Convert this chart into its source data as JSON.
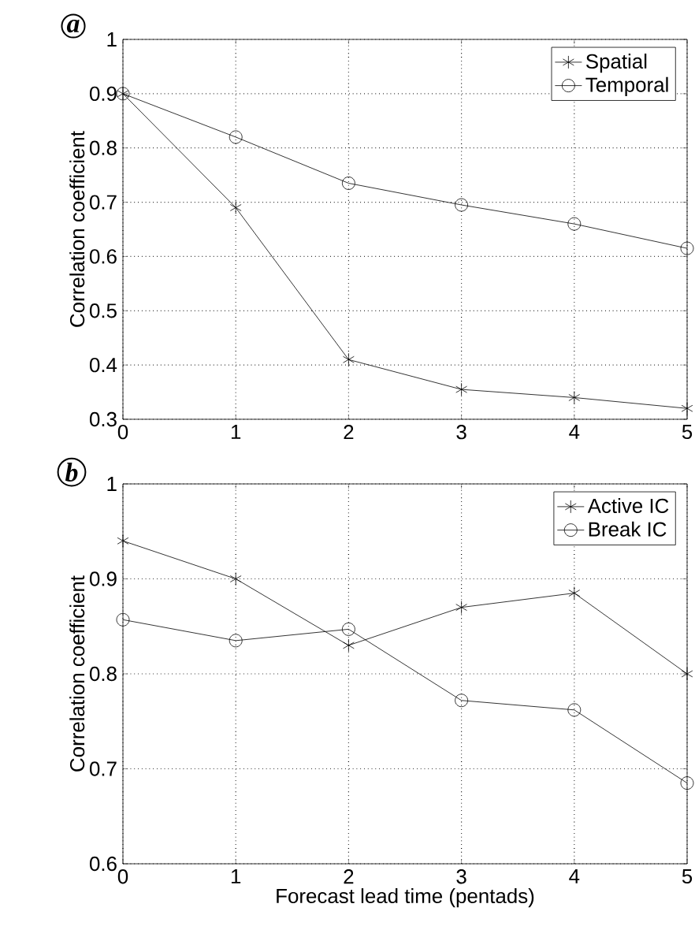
{
  "chart_data": [
    {
      "type": "line",
      "title": "a",
      "ylabel": "Correlation coefficient",
      "x": [
        0,
        1,
        2,
        3,
        4,
        5
      ],
      "xlim": [
        0,
        5
      ],
      "xticks": [
        0,
        1,
        2,
        3,
        4,
        5
      ],
      "ylim": [
        0.3,
        1
      ],
      "yticks": [
        0.3,
        0.4,
        0.5,
        0.6,
        0.7,
        0.8,
        0.9,
        1
      ],
      "grid": true,
      "legend": "top right",
      "line_style": "solid",
      "series": [
        {
          "name": "Spatial",
          "color": "#000000",
          "marker": "cross",
          "values": [
            0.9,
            0.69,
            0.41,
            0.355,
            0.34,
            0.32
          ]
        },
        {
          "name": "Temporal",
          "color": "#000000",
          "marker": "circle",
          "values": [
            0.9,
            0.82,
            0.735,
            0.695,
            0.66,
            0.615
          ]
        }
      ]
    },
    {
      "type": "line",
      "title": "b",
      "xlabel": "Forecast lead time (pentads)",
      "ylabel": "Correlation coefficient",
      "x": [
        0,
        1,
        2,
        3,
        4,
        5
      ],
      "xlim": [
        0,
        5
      ],
      "xticks": [
        0,
        1,
        2,
        3,
        4,
        5
      ],
      "ylim": [
        0.6,
        1
      ],
      "yticks": [
        0.6,
        0.7,
        0.8,
        0.9,
        1
      ],
      "grid": true,
      "legend": "top right",
      "line_style": "solid",
      "series": [
        {
          "name": "Active IC",
          "color": "#000000",
          "marker": "cross",
          "values": [
            0.94,
            0.9,
            0.83,
            0.87,
            0.885,
            0.8
          ]
        },
        {
          "name": "Break IC",
          "color": "#000000",
          "marker": "circle",
          "values": [
            0.857,
            0.835,
            0.847,
            0.772,
            0.762,
            0.685
          ]
        }
      ]
    }
  ]
}
